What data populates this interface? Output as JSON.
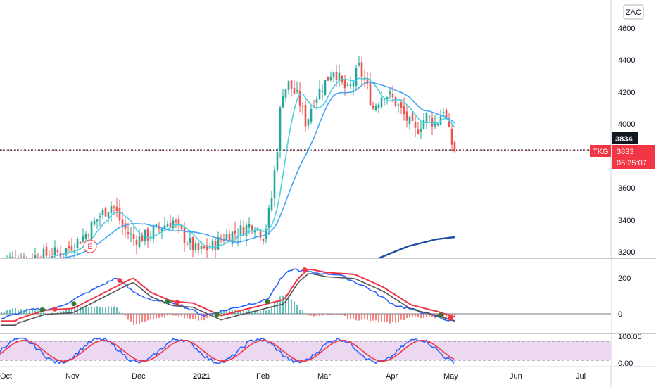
{
  "currency_button": "ZAC",
  "price_axis": {
    "ticks": [
      "4600",
      "4400",
      "4200",
      "4000",
      "3600",
      "3400",
      "3200"
    ],
    "last_close_label": "3834",
    "symbol_tag": "TKG",
    "symbol_price": "3833",
    "countdown": "05:25:07"
  },
  "macd_axis": {
    "ticks": [
      "200",
      "0"
    ]
  },
  "stoch_axis": {
    "ticks": [
      "100.00",
      "0.00"
    ]
  },
  "time_axis": {
    "labels": [
      "Oct",
      "Nov",
      "Dec",
      "2021",
      "Feb",
      "Mar",
      "Apr",
      "May",
      "Jun",
      "Jul"
    ]
  },
  "earnings_marker": "E",
  "colors": {
    "up": "#26a69a",
    "down": "#ef5350",
    "ma_fast": "#4dd0e1",
    "ma_mid": "#42a5f5",
    "ma_slow": "#1e4fa3",
    "macd_line": "#2962ff",
    "signal_line": "#f23645",
    "stoch_k": "#2962ff",
    "stoch_d": "#f23645",
    "stoch_band": "#e1bee7",
    "price_tag": "#f23645"
  },
  "chart_data": {
    "type": "candlestick",
    "price_range": [
      3150,
      4700
    ],
    "last_price": 3833,
    "previous_close": 3834,
    "x_range_months": [
      "Oct",
      "Jul"
    ],
    "panels": [
      "price",
      "macd",
      "stochastic"
    ],
    "macd_range": [
      -100,
      300
    ],
    "stoch_range": [
      0,
      100
    ],
    "stoch_bands": [
      20,
      80
    ]
  }
}
